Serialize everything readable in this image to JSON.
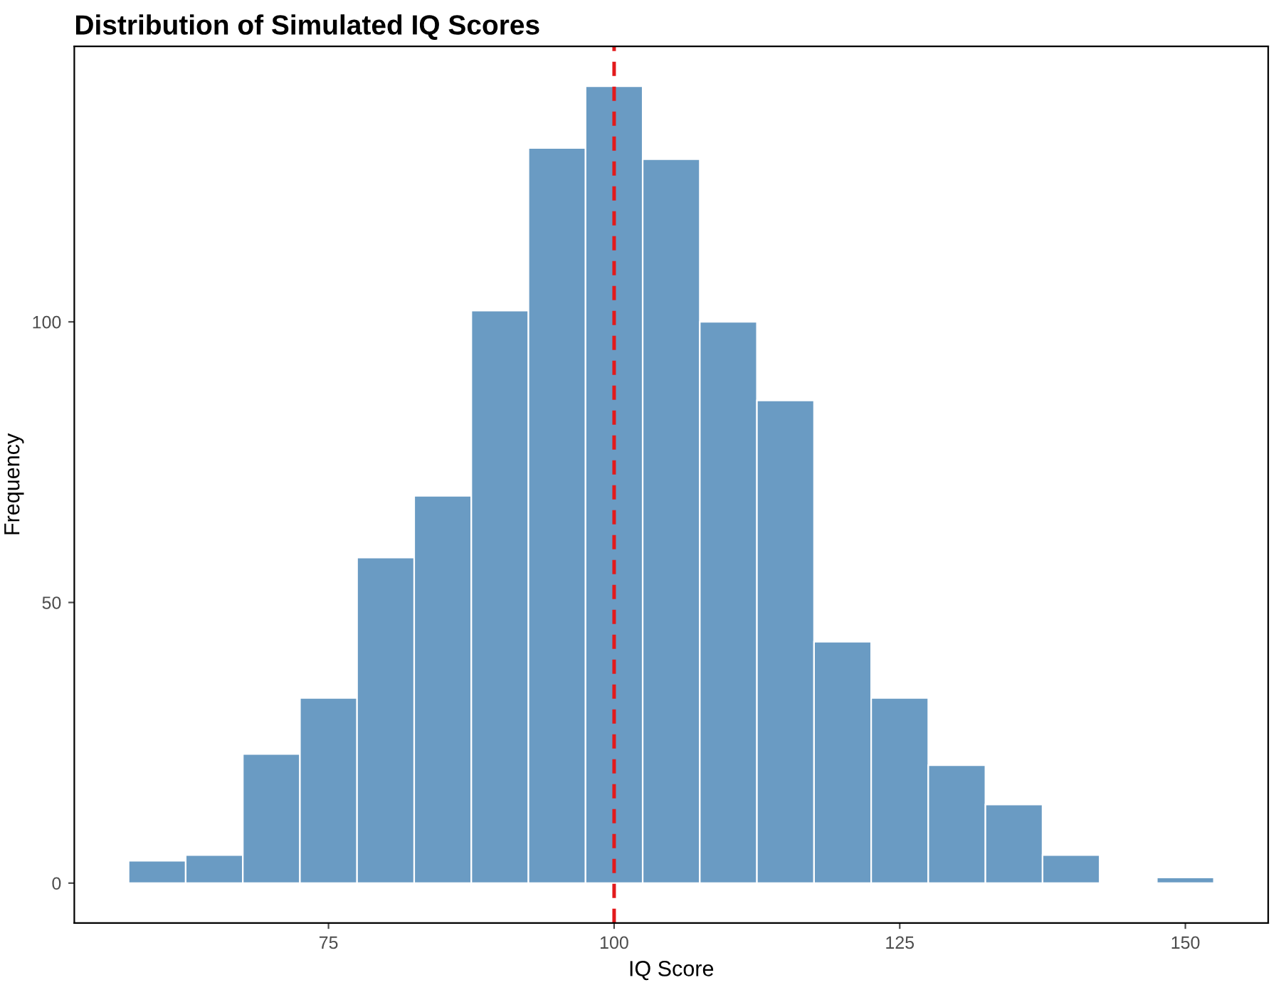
{
  "chart_data": {
    "type": "histogram",
    "title": "Distribution of Simulated IQ Scores",
    "xlabel": "IQ Score",
    "ylabel": "Frequency",
    "bins": [
      57.5,
      62.5,
      67.5,
      72.5,
      77.5,
      82.5,
      87.5,
      92.5,
      97.5,
      102.5,
      107.5,
      112.5,
      117.5,
      122.5,
      127.5,
      132.5,
      137.5,
      142.5,
      147.5,
      152.5
    ],
    "values": [
      4,
      5,
      23,
      33,
      58,
      69,
      102,
      131,
      142,
      129,
      100,
      86,
      43,
      33,
      21,
      14,
      5,
      0,
      1
    ],
    "color": "#6a9bc3",
    "xlim": [
      52.75,
      157.25
    ],
    "xticks": [
      75,
      100,
      125,
      150
    ],
    "ylim": [
      -7.1,
      149.1
    ],
    "yticks": [
      0,
      50,
      100
    ],
    "grid": false,
    "ref_lines": [
      {
        "axis": "x",
        "value": 100,
        "color": "#e31a1c",
        "line_style": "dashed"
      }
    ]
  }
}
